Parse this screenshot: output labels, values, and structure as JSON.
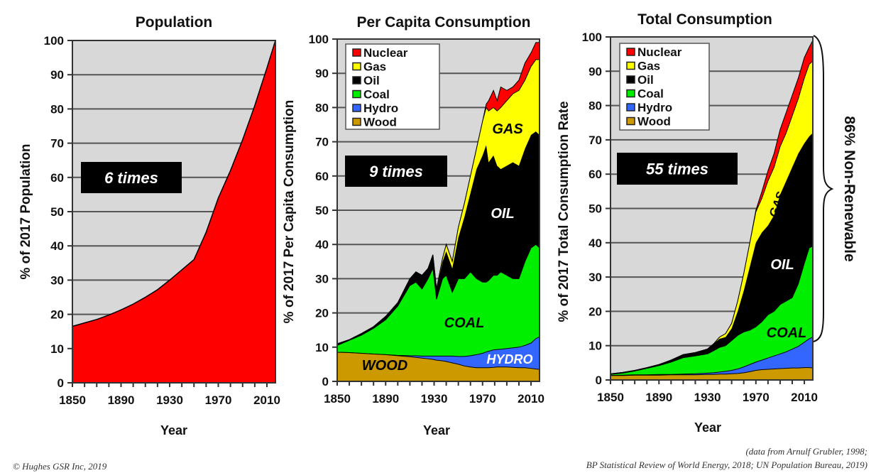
{
  "colors": {
    "plot_bg": "#d8d8d8",
    "grid": "#555555",
    "nuclear": "#ff0000",
    "gas": "#ffff00",
    "oil": "#000000",
    "coal": "#00ee00",
    "hydro": "#3366ff",
    "wood": "#cc9900",
    "population": "#ff0000"
  },
  "footer": {
    "copyright": "©  Hughes GSR Inc, 2019",
    "source_line1": "(data from Arnulf Grubler, 1998;",
    "source_line2": "BP Statistical Review of World Energy, 2018; UN Population Bureau, 2019)"
  },
  "side_annotation": "86% Non-Renewable",
  "chart_data": [
    {
      "id": "population",
      "type": "area",
      "title": "Population",
      "xlabel": "Year",
      "ylabel": "% of  2017 Population",
      "xlim": [
        1850,
        2017
      ],
      "ylim": [
        0,
        100
      ],
      "xticks": [
        1850,
        1890,
        1930,
        1970,
        2010
      ],
      "yticks": [
        0,
        10,
        20,
        30,
        40,
        50,
        60,
        70,
        80,
        90,
        100
      ],
      "grid": true,
      "callout": "6 times",
      "series": [
        {
          "name": "Population",
          "color_key": "population",
          "x": [
            1850,
            1860,
            1870,
            1880,
            1890,
            1900,
            1910,
            1920,
            1930,
            1940,
            1950,
            1955,
            1960,
            1965,
            1970,
            1980,
            1990,
            2000,
            2010,
            2017
          ],
          "y": [
            16.5,
            17.5,
            18.5,
            19.8,
            21.3,
            23,
            25,
            27.2,
            30,
            33,
            36,
            40,
            44,
            49,
            54,
            62,
            71,
            81,
            92,
            100
          ]
        }
      ]
    },
    {
      "id": "per_capita",
      "type": "stacked-area",
      "title": "Per Capita Consumption",
      "xlabel": "Year",
      "ylabel": "% of  2017 Per Capita Consumption",
      "xlim": [
        1850,
        2017
      ],
      "ylim": [
        0,
        100
      ],
      "xticks": [
        1850,
        1890,
        1930,
        1970,
        2010
      ],
      "yticks": [
        0,
        10,
        20,
        30,
        40,
        50,
        60,
        70,
        80,
        90,
        100
      ],
      "grid": true,
      "callout": "9 times",
      "legend": [
        "Nuclear",
        "Gas",
        "Oil",
        "Coal",
        "Hydro",
        "Wood"
      ],
      "legend_position": "top-left",
      "area_labels": [
        "WOOD",
        "HYDRO",
        "COAL",
        "OIL",
        "GAS"
      ],
      "x": [
        1850,
        1860,
        1870,
        1880,
        1890,
        1900,
        1910,
        1915,
        1920,
        1925,
        1929,
        1932,
        1937,
        1940,
        1945,
        1950,
        1955,
        1960,
        1965,
        1970,
        1973,
        1975,
        1979,
        1982,
        1985,
        1990,
        1995,
        2000,
        2005,
        2010,
        2014,
        2017
      ],
      "series": [
        {
          "name": "Wood",
          "color_key": "wood",
          "cumulative": [
            8.5,
            8.4,
            8.2,
            8.0,
            7.8,
            7.5,
            7.2,
            7.0,
            6.8,
            6.6,
            6.4,
            6.2,
            6.0,
            5.8,
            5.4,
            5.0,
            4.5,
            4.2,
            4.0,
            4.0,
            4.0,
            4.0,
            4.1,
            4.2,
            4.2,
            4.2,
            4.1,
            4.0,
            4.0,
            3.8,
            3.6,
            3.5
          ]
        },
        {
          "name": "Hydro",
          "color_key": "hydro",
          "cumulative": [
            8.5,
            8.4,
            8.2,
            8.0,
            7.8,
            7.6,
            7.5,
            7.5,
            7.4,
            7.4,
            7.4,
            7.4,
            7.4,
            7.4,
            7.4,
            7.3,
            7.3,
            7.5,
            7.8,
            8.2,
            8.6,
            8.8,
            9.2,
            9.3,
            9.4,
            9.6,
            9.8,
            10.0,
            10.5,
            11.2,
            12.5,
            13.0
          ]
        },
        {
          "name": "Coal",
          "color_key": "coal",
          "cumulative": [
            10.5,
            12,
            13.5,
            15.5,
            18,
            22,
            28,
            29,
            27,
            30,
            33,
            24,
            30,
            31,
            26,
            30,
            30,
            32,
            30,
            29,
            29,
            29.5,
            31,
            31,
            32,
            31,
            30,
            30,
            35,
            39,
            40,
            39
          ]
        },
        {
          "name": "Oil",
          "color_key": "oil",
          "cumulative": [
            11,
            12.2,
            14,
            16,
            19,
            23,
            30,
            32,
            31,
            33,
            37,
            27,
            35,
            38,
            33,
            42,
            48,
            55,
            62,
            66,
            69,
            64,
            66,
            63,
            62,
            63,
            64,
            63,
            68,
            72,
            73,
            72
          ]
        },
        {
          "name": "Gas",
          "color_key": "gas",
          "cumulative": [
            11,
            12.2,
            14,
            16,
            19,
            23,
            30,
            32,
            31,
            33,
            37,
            27,
            36,
            40,
            35,
            45,
            52,
            60,
            68,
            76,
            80,
            79,
            80,
            79,
            80,
            82,
            84,
            85,
            88,
            92,
            94,
            94
          ]
        },
        {
          "name": "Nuclear",
          "color_key": "nuclear",
          "cumulative": [
            11,
            12.2,
            14,
            16,
            19,
            23,
            30,
            32,
            31,
            33,
            37,
            27,
            36,
            40,
            35,
            45,
            52,
            60,
            68,
            76,
            81,
            82,
            85,
            82,
            86,
            85,
            86,
            88,
            93,
            96,
            99,
            99
          ]
        }
      ]
    },
    {
      "id": "total",
      "type": "stacked-area",
      "title": "Total Consumption",
      "xlabel": "Year",
      "ylabel": "% of  2017 Total Consumption Rate",
      "xlim": [
        1850,
        2017
      ],
      "ylim": [
        0,
        100
      ],
      "xticks": [
        1850,
        1890,
        1930,
        1970,
        2010
      ],
      "yticks": [
        0,
        10,
        20,
        30,
        40,
        50,
        60,
        70,
        80,
        90,
        100
      ],
      "grid": true,
      "callout": "55 times",
      "legend": [
        "Nuclear",
        "Gas",
        "Oil",
        "Coal",
        "Hydro",
        "Wood"
      ],
      "legend_position": "top-left",
      "area_labels": [
        "COAL",
        "OIL",
        "GAS"
      ],
      "x": [
        1850,
        1860,
        1870,
        1880,
        1890,
        1900,
        1910,
        1920,
        1930,
        1935,
        1940,
        1945,
        1950,
        1955,
        1960,
        1965,
        1970,
        1975,
        1980,
        1985,
        1990,
        1995,
        2000,
        2005,
        2010,
        2014,
        2017
      ],
      "series": [
        {
          "name": "Wood",
          "color_key": "wood",
          "cumulative": [
            1.3,
            1.3,
            1.4,
            1.4,
            1.4,
            1.5,
            1.5,
            1.5,
            1.6,
            1.6,
            1.7,
            1.7,
            1.8,
            1.9,
            2.1,
            2.4,
            2.8,
            3.0,
            3.1,
            3.2,
            3.3,
            3.4,
            3.5,
            3.5,
            3.6,
            3.6,
            3.5
          ]
        },
        {
          "name": "Hydro",
          "color_key": "hydro",
          "cumulative": [
            1.3,
            1.4,
            1.5,
            1.5,
            1.6,
            1.6,
            1.7,
            1.8,
            2.0,
            2.1,
            2.3,
            2.5,
            2.8,
            3.2,
            3.8,
            4.5,
            5.2,
            5.8,
            6.4,
            7.0,
            7.6,
            8.2,
            9.0,
            9.8,
            11,
            12,
            12.5
          ]
        },
        {
          "name": "Coal",
          "color_key": "coal",
          "cumulative": [
            1.6,
            2.0,
            2.6,
            3.4,
            4.2,
            5.2,
            6.5,
            7.0,
            7.6,
            8.5,
            9.5,
            10,
            11.5,
            13,
            14,
            14.5,
            15.5,
            17,
            19,
            20,
            22,
            23,
            24,
            28,
            34,
            38.5,
            39
          ]
        },
        {
          "name": "Oil",
          "color_key": "oil",
          "cumulative": [
            1.8,
            2.2,
            2.8,
            3.6,
            4.5,
            5.8,
            7.4,
            8.0,
            9.0,
            10.5,
            12,
            12.5,
            15,
            20,
            26,
            33,
            40,
            43,
            45,
            48,
            54,
            58,
            62,
            66,
            69,
            71,
            72
          ]
        },
        {
          "name": "Gas",
          "color_key": "gas",
          "cumulative": [
            1.8,
            2.2,
            2.8,
            3.6,
            4.5,
            5.8,
            7.4,
            8.0,
            9.0,
            10.5,
            12.5,
            13.5,
            16.5,
            23,
            31,
            40,
            49,
            53,
            58,
            62,
            68,
            72,
            77,
            82,
            88,
            92,
            93
          ]
        },
        {
          "name": "Nuclear",
          "color_key": "nuclear",
          "cumulative": [
            1.8,
            2.2,
            2.8,
            3.6,
            4.5,
            5.8,
            7.4,
            8.0,
            9.0,
            10.5,
            12.5,
            13.5,
            16.5,
            23,
            31,
            40,
            49.5,
            55,
            61,
            66,
            73,
            78,
            83,
            88,
            94,
            97,
            99
          ]
        }
      ]
    }
  ]
}
